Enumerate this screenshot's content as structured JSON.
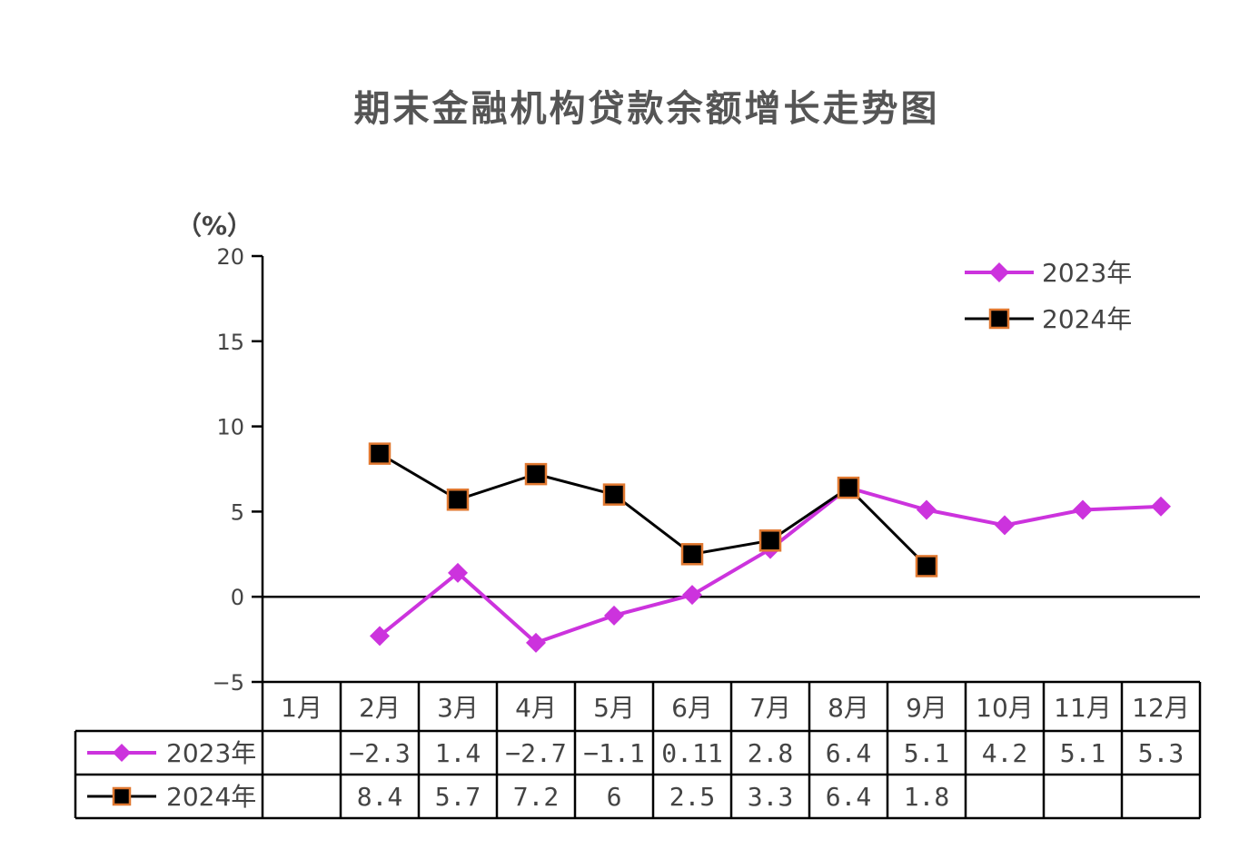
{
  "chart_data": {
    "type": "line",
    "title": "期末金融机构贷款余额增长走势图",
    "unit_label": "（%）",
    "categories": [
      "1月",
      "2月",
      "3月",
      "4月",
      "5月",
      "6月",
      "7月",
      "8月",
      "9月",
      "10月",
      "11月",
      "12月"
    ],
    "ylim": [
      -5,
      20
    ],
    "yticks": [
      "20",
      "15",
      "10",
      "5",
      "0",
      "−5"
    ],
    "ytick_values": [
      20,
      15,
      10,
      5,
      0,
      -5
    ],
    "series": [
      {
        "name": "2023年",
        "marker": "diamond",
        "color": "#cc33dd",
        "values": [
          null,
          -2.3,
          1.4,
          -2.7,
          -1.1,
          0.11,
          2.8,
          6.4,
          5.1,
          4.2,
          5.1,
          5.3
        ],
        "table_values": [
          "",
          "−2.3",
          "1.4",
          "−2.7",
          "−1.1",
          "0.11",
          "2.8",
          "6.4",
          "5.1",
          "4.2",
          "5.1",
          "5.3"
        ]
      },
      {
        "name": "2024年",
        "marker": "square",
        "color": "#000000",
        "marker_edge": "#e07830",
        "values": [
          null,
          8.4,
          5.7,
          7.2,
          6,
          2.5,
          3.3,
          6.4,
          1.8,
          null,
          null,
          null
        ],
        "table_values": [
          "",
          "8.4",
          "5.7",
          "7.2",
          "6",
          "2.5",
          "3.3",
          "6.4",
          "1.8",
          "",
          "",
          ""
        ]
      }
    ],
    "legend_position": "top-right",
    "grid": false
  }
}
